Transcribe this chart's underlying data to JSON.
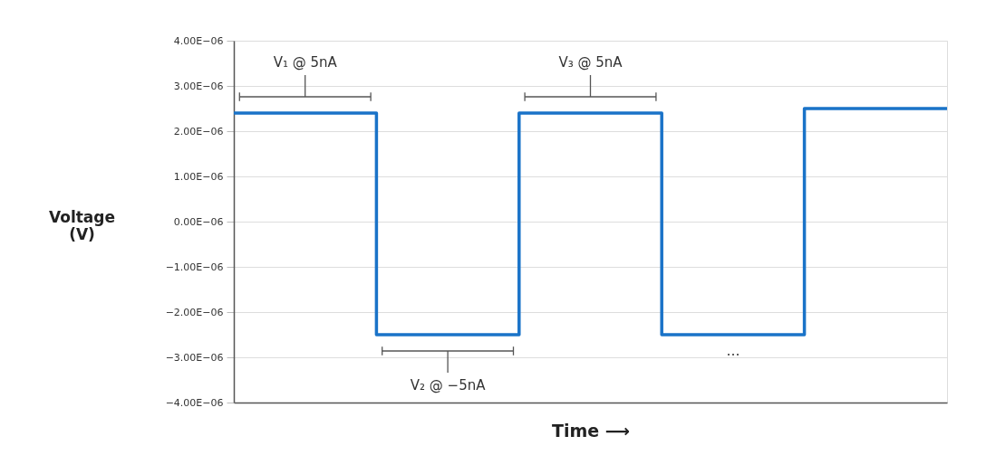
{
  "chart_data": {
    "type": "step",
    "categories": [
      null,
      null,
      null,
      null,
      null,
      null
    ],
    "series": [
      {
        "color": "#1a73c8",
        "values": [
          2.4e-06,
          -2.5e-06,
          2.4e-06,
          -2.5e-06,
          2.5e-06,
          2.5e-06
        ]
      }
    ],
    "ylabel": "Voltage\n(V)",
    "xlabel": "Time ⟶",
    "ylim": [
      -4e-06,
      4e-06
    ],
    "yticks": [
      {
        "value": -4e-06,
        "label": "−4.00E−06"
      },
      {
        "value": -3e-06,
        "label": "−3.00E−06"
      },
      {
        "value": -2e-06,
        "label": "−2.00E−06"
      },
      {
        "value": -1e-06,
        "label": "−1.00E−06"
      },
      {
        "value": 0,
        "label": "0.00E−06"
      },
      {
        "value": 1e-06,
        "label": "1.00E−06"
      },
      {
        "value": 2e-06,
        "label": "2.00E−06"
      },
      {
        "value": 3e-06,
        "label": "3.00E−06"
      },
      {
        "value": 4e-06,
        "label": "4.00E−06"
      }
    ],
    "grid": "y",
    "tick_labels": "y",
    "annotations": [
      "V₁ @ 5nA",
      "V₂ @ −5nA",
      "V₃ @ 5nA",
      "…"
    ]
  }
}
